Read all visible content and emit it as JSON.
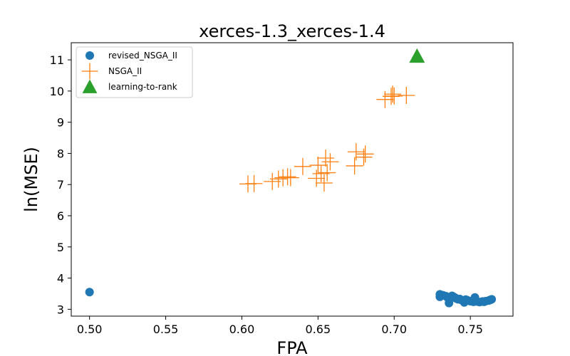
{
  "chart_data": {
    "type": "scatter",
    "title": "xerces-1.3_xerces-1.4",
    "xlabel": "FPA",
    "ylabel": "ln(MSE)",
    "xlim": [
      0.488,
      0.778
    ],
    "ylim": [
      2.78,
      11.55
    ],
    "xticks": [
      {
        "value": 0.5,
        "label": "0.50"
      },
      {
        "value": 0.55,
        "label": "0.55"
      },
      {
        "value": 0.6,
        "label": "0.60"
      },
      {
        "value": 0.65,
        "label": "0.65"
      },
      {
        "value": 0.7,
        "label": "0.70"
      },
      {
        "value": 0.75,
        "label": "0.75"
      }
    ],
    "yticks": [
      {
        "value": 3,
        "label": "3"
      },
      {
        "value": 4,
        "label": "4"
      },
      {
        "value": 5,
        "label": "5"
      },
      {
        "value": 6,
        "label": "6"
      },
      {
        "value": 7,
        "label": "7"
      },
      {
        "value": 8,
        "label": "8"
      },
      {
        "value": 9,
        "label": "9"
      },
      {
        "value": 10,
        "label": "10"
      },
      {
        "value": 11,
        "label": "11"
      }
    ],
    "grid": false,
    "legend_position": "top-left",
    "series": [
      {
        "name": "revised_NSGA_II",
        "marker": "circle",
        "color": "#1f77b4",
        "points": [
          [
            0.5,
            3.55
          ],
          [
            0.73,
            3.4
          ],
          [
            0.73,
            3.48
          ],
          [
            0.732,
            3.45
          ],
          [
            0.734,
            3.42
          ],
          [
            0.735,
            3.38
          ],
          [
            0.736,
            3.2
          ],
          [
            0.737,
            3.35
          ],
          [
            0.738,
            3.43
          ],
          [
            0.739,
            3.4
          ],
          [
            0.74,
            3.37
          ],
          [
            0.741,
            3.34
          ],
          [
            0.742,
            3.32
          ],
          [
            0.743,
            3.33
          ],
          [
            0.744,
            3.3
          ],
          [
            0.745,
            3.28
          ],
          [
            0.746,
            3.22
          ],
          [
            0.747,
            3.31
          ],
          [
            0.748,
            3.29
          ],
          [
            0.75,
            3.26
          ],
          [
            0.752,
            3.24
          ],
          [
            0.753,
            3.38
          ],
          [
            0.754,
            3.25
          ],
          [
            0.756,
            3.23
          ],
          [
            0.758,
            3.25
          ],
          [
            0.759,
            3.24
          ],
          [
            0.76,
            3.26
          ],
          [
            0.762,
            3.28
          ],
          [
            0.763,
            3.3
          ],
          [
            0.764,
            3.32
          ]
        ]
      },
      {
        "name": "NSGA_II",
        "marker": "plus",
        "color": "#ff7f0e",
        "points": [
          [
            0.604,
            7.02
          ],
          [
            0.608,
            7.03
          ],
          [
            0.62,
            7.1
          ],
          [
            0.624,
            7.18
          ],
          [
            0.627,
            7.22
          ],
          [
            0.63,
            7.25
          ],
          [
            0.632,
            7.22
          ],
          [
            0.64,
            7.58
          ],
          [
            0.649,
            7.2
          ],
          [
            0.65,
            7.62
          ],
          [
            0.652,
            7.35
          ],
          [
            0.654,
            7.05
          ],
          [
            0.655,
            7.85
          ],
          [
            0.656,
            7.38
          ],
          [
            0.658,
            7.73
          ],
          [
            0.674,
            7.6
          ],
          [
            0.675,
            8.05
          ],
          [
            0.68,
            7.88
          ],
          [
            0.681,
            7.98
          ],
          [
            0.694,
            9.73
          ],
          [
            0.698,
            9.83
          ],
          [
            0.699,
            9.9
          ],
          [
            0.7,
            9.84
          ],
          [
            0.708,
            9.86
          ]
        ]
      },
      {
        "name": "learning-to-rank",
        "marker": "triangle",
        "color": "#2ca02c",
        "points": [
          [
            0.715,
            11.12
          ]
        ]
      }
    ]
  }
}
